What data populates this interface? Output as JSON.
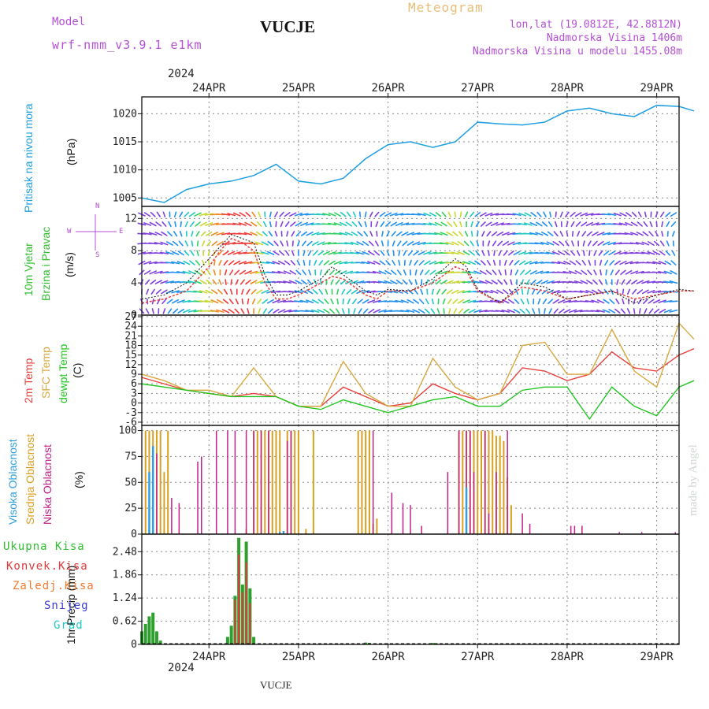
{
  "header": {
    "model_label": "Model",
    "model_name": "wrf-nmm_v3.9.1 e1km",
    "station": "VUCJE",
    "meteogram_label": "Meteogram",
    "lonlat": "lon,lat (19.0812E, 42.8812N)",
    "altitude": "Nadmorska Visina 1406m",
    "altitude_model": "Nadmorska Visina u modelu 1455.08m",
    "footer_station": "VUCJE",
    "watermark": "made by Angel",
    "year": "2024"
  },
  "time_axis": {
    "labels": [
      "24APR",
      "25APR",
      "26APR",
      "27APR",
      "28APR",
      "29APR"
    ],
    "start_hour_offset": -18,
    "hours_span": 144
  },
  "panels": {
    "pressure": {
      "ylabel_main": "Pritisak na nivou mora",
      "unit": "(hPa)",
      "ticks": [
        "1005",
        "1010",
        "1015",
        "1020"
      ]
    },
    "wind": {
      "ylabel_1": "10m Vjetar",
      "ylabel_2": "Brzina i Pravac",
      "unit": "(m/s)",
      "ticks": [
        "0",
        "4",
        "8",
        "12"
      ],
      "compass": {
        "n": "N",
        "s": "S",
        "w": "W",
        "e": "E"
      }
    },
    "temp": {
      "ylabel_1": "2m Temp",
      "ylabel_2": "SFC Temp",
      "ylabel_3": "dewpt Temp",
      "unit": "(C)",
      "ticks": [
        "-6",
        "-3",
        "0",
        "3",
        "6",
        "9",
        "12",
        "15",
        "18",
        "21",
        "24",
        "27"
      ]
    },
    "cloud": {
      "ylabel_1": "Visoka Oblacnost",
      "ylabel_2": "Srednja Oblacnost",
      "ylabel_3": "Niska Oblacnost",
      "unit": "(%)",
      "ticks": [
        "0",
        "25",
        "50",
        "75",
        "100"
      ]
    },
    "precip": {
      "unit": "1hr Precip (mm)",
      "ticks": [
        "0",
        "0.62",
        "1.24",
        "1.86",
        "2.48"
      ],
      "legend": [
        "Ukupna Kisa",
        "Konvek.Kisa",
        "Zaledj.Kisa",
        "Snijeg",
        "Grad"
      ]
    }
  },
  "colors": {
    "pressure": "#1e9fe0",
    "temp2m": "#e8403c",
    "sfc": "#d8a840",
    "dewpt": "#22c522",
    "cloud_high": "#2f9fe0",
    "cloud_mid": "#d8a020",
    "cloud_low": "#c0208a",
    "rain_total": "#2fa02f",
    "rain_conv": "#e03a3a",
    "rain_freeze": "#f07a30",
    "snow": "#3a3ad8",
    "hail": "#20c8c8"
  },
  "chart_data": [
    {
      "type": "line",
      "x_unit": "hours from 24APR 00 UTC",
      "x": [
        -18,
        -12,
        -6,
        0,
        6,
        12,
        18,
        24,
        30,
        36,
        42,
        48,
        54,
        60,
        66,
        72,
        78,
        84,
        90,
        96,
        102,
        108,
        114,
        120,
        126,
        130
      ],
      "series": [
        {
          "values": [
            1005,
            1004.2,
            1006.5,
            1007.5,
            1008,
            1009,
            1011,
            1008,
            1007.5,
            1008.5,
            1012,
            1014.5,
            1015,
            1014,
            1015,
            1018.5,
            1018.2,
            1018,
            1018.5,
            1020.5,
            1021,
            1020,
            1019.5,
            1021.5,
            1021.3,
            1020.5
          ]
        }
      ],
      "ylim": [
        1003.5,
        1023
      ]
    },
    {
      "type": "line",
      "x_unit": "hours from 24APR 00 UTC",
      "x": [
        -18,
        -12,
        -6,
        0,
        3,
        6,
        9,
        12,
        15,
        18,
        21,
        24,
        30,
        33,
        36,
        42,
        45,
        48,
        54,
        60,
        66,
        69,
        72,
        78,
        84,
        90,
        96,
        102,
        108,
        114,
        120,
        126,
        130
      ],
      "series": [
        {
          "values": [
            1.5,
            2,
            3,
            6,
            8,
            9.5,
            9,
            8,
            4,
            2,
            2,
            2.5,
            4,
            4.8,
            4.5,
            2.5,
            2,
            3,
            3,
            4,
            6,
            5.5,
            3,
            1.5,
            3.5,
            3,
            2,
            2.5,
            3,
            2,
            2.5,
            3,
            3
          ]
        },
        {
          "values": [
            2,
            2.5,
            4,
            7,
            8.5,
            10,
            9.5,
            9,
            5,
            2.5,
            2.5,
            3,
            4.5,
            6,
            5,
            3,
            2.5,
            3.2,
            3,
            4.5,
            7,
            6,
            3.2,
            1.5,
            4,
            3.5,
            2,
            2.5,
            3,
            1.5,
            2.5,
            3.2,
            3
          ]
        }
      ],
      "ylim": [
        0,
        13.5
      ]
    },
    {
      "type": "line",
      "x_unit": "hours from 24APR 00 UTC",
      "x": [
        -18,
        -12,
        -6,
        0,
        6,
        12,
        18,
        24,
        30,
        36,
        42,
        48,
        54,
        60,
        66,
        72,
        78,
        84,
        90,
        96,
        102,
        108,
        114,
        120,
        126,
        130
      ],
      "series": [
        {
          "values": [
            8,
            6,
            4,
            3,
            2,
            3,
            2,
            -1,
            -1,
            5,
            2,
            -1,
            0,
            6,
            3,
            1,
            3,
            11,
            10,
            7,
            9,
            16,
            11,
            10,
            15,
            17
          ]
        },
        {
          "values": [
            9,
            7,
            4,
            4,
            2,
            11,
            2,
            -1,
            -1,
            13,
            3,
            -1,
            -1,
            14,
            5,
            1,
            3,
            18,
            19,
            9,
            9,
            23,
            10,
            5,
            25,
            20
          ]
        },
        {
          "values": [
            6,
            5,
            4,
            3,
            2,
            2,
            2,
            -1,
            -2,
            1,
            -1,
            -3,
            -1,
            1,
            2,
            -1,
            -1,
            4,
            5,
            5,
            -5,
            5,
            -1,
            -4,
            5,
            7
          ]
        }
      ],
      "ylim": [
        -7,
        27.5
      ]
    },
    {
      "type": "bar",
      "x_unit": "hours from 24APR 00 UTC",
      "high": {
        "x": [
          -16,
          -15,
          19,
          20,
          69
        ],
        "values": [
          60,
          85,
          2,
          3,
          45
        ]
      },
      "mid": {
        "x": [
          -17,
          -16,
          -15,
          -14,
          -13,
          -12,
          -11,
          10,
          12,
          13,
          14,
          15,
          16,
          17,
          18,
          19,
          21,
          22,
          23,
          24,
          26,
          28,
          40,
          41,
          42,
          43,
          44,
          45,
          67,
          68,
          69,
          70,
          71,
          72,
          73,
          74,
          75,
          76,
          77,
          78,
          79,
          80,
          81
        ],
        "values": [
          100,
          100,
          100,
          100,
          100,
          60,
          100,
          5,
          100,
          100,
          100,
          100,
          100,
          100,
          100,
          100,
          100,
          100,
          100,
          100,
          5,
          100,
          100,
          100,
          100,
          100,
          10,
          15,
          100,
          100,
          100,
          100,
          100,
          100,
          100,
          100,
          100,
          100,
          95,
          95,
          90,
          55,
          28
        ]
      },
      "low": {
        "x": [
          -15,
          -14,
          -10,
          -8,
          -3,
          -2,
          2,
          5,
          7,
          10,
          12,
          14,
          16,
          21,
          22,
          44,
          49,
          52,
          54,
          57,
          64,
          67,
          69,
          70,
          71,
          74,
          75,
          77,
          80,
          84,
          86,
          97,
          98,
          100,
          110,
          116,
          125
        ],
        "values": [
          80,
          78,
          35,
          30,
          70,
          75,
          100,
          100,
          100,
          100,
          100,
          100,
          100,
          90,
          100,
          100,
          40,
          30,
          28,
          8,
          60,
          100,
          100,
          100,
          60,
          100,
          20,
          60,
          100,
          20,
          10,
          8,
          8,
          8,
          2,
          2,
          2
        ]
      },
      "ylim": [
        0,
        105
      ]
    },
    {
      "type": "bar",
      "x_unit": "hours from 24APR 00 UTC",
      "total": {
        "x": [
          -18,
          -17,
          -16,
          -15,
          -14,
          -13,
          5,
          6,
          7,
          8,
          9,
          10,
          11,
          12,
          42,
          43,
          60,
          61
        ],
        "values": [
          0.35,
          0.55,
          0.75,
          0.85,
          0.35,
          0.1,
          0.2,
          0.5,
          1.3,
          2.85,
          1.6,
          2.75,
          1.5,
          0.2,
          0.05,
          0.04,
          0.04,
          0.03
        ]
      },
      "conv": {
        "x": [
          7,
          8,
          9,
          10,
          11
        ],
        "values": [
          1.2,
          2.4,
          1.4,
          2.2,
          1.1
        ]
      },
      "ylim": [
        0,
        2.95
      ]
    }
  ]
}
